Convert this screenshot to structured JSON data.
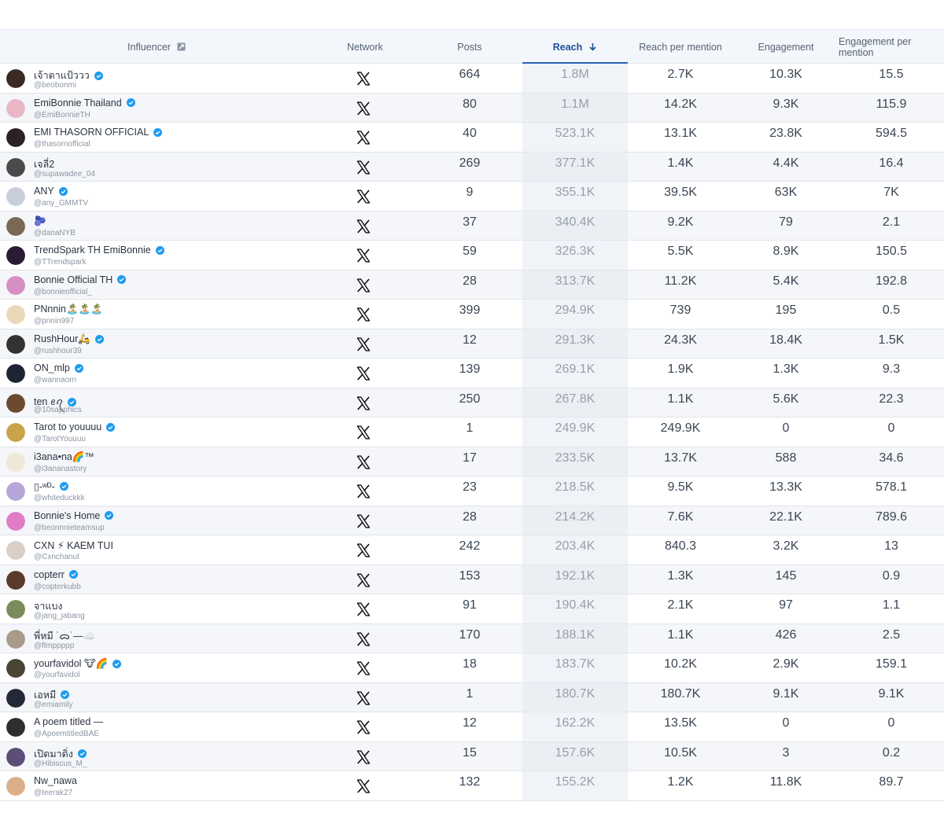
{
  "columns": {
    "influencer": "Influencer",
    "network": "Network",
    "posts": "Posts",
    "reach": "Reach",
    "reach_per_mention": "Reach per mention",
    "engagement": "Engagement",
    "engagement_per_mention": "Engagement per mention"
  },
  "sort": {
    "column": "reach",
    "direction": "descending"
  },
  "colors": {
    "accent": "#2d62b5",
    "verified": "#1d9bf0",
    "header_bg": "#f3f6fa",
    "stripe": "#f4f6f9"
  },
  "rows": [
    {
      "name": "เจ้าตาแป้ววว",
      "handle": "@beobonmi",
      "verified": true,
      "network": "x-icon",
      "posts": "664",
      "reach": "1.8M",
      "reach_per_mention": "2.7K",
      "engagement": "10.3K",
      "engagement_per_mention": "15.5",
      "avatar_color": "#3a2a22"
    },
    {
      "name": "EmiBonnie Thailand",
      "handle": "@EmiBonnieTH",
      "verified": true,
      "network": "x-icon",
      "posts": "80",
      "reach": "1.1M",
      "reach_per_mention": "14.2K",
      "engagement": "9.3K",
      "engagement_per_mention": "115.9",
      "avatar_color": "#e9b7c5"
    },
    {
      "name": "EMI THASORN OFFICIAL",
      "handle": "@thasornofficial",
      "verified": true,
      "network": "x-icon",
      "posts": "40",
      "reach": "523.1K",
      "reach_per_mention": "13.1K",
      "engagement": "23.8K",
      "engagement_per_mention": "594.5",
      "avatar_color": "#2b2224"
    },
    {
      "name": "เจลี่2",
      "handle": "@supawadee_04",
      "verified": false,
      "network": "x-icon",
      "posts": "269",
      "reach": "377.1K",
      "reach_per_mention": "1.4K",
      "engagement": "4.4K",
      "engagement_per_mention": "16.4",
      "avatar_color": "#4a4a4a"
    },
    {
      "name": "ANY",
      "handle": "@any_GMMTV",
      "verified": true,
      "network": "x-icon",
      "posts": "9",
      "reach": "355.1K",
      "reach_per_mention": "39.5K",
      "engagement": "63K",
      "engagement_per_mention": "7K",
      "avatar_color": "#c9cfd8"
    },
    {
      "name": "🫐",
      "handle": "@danaNYB",
      "verified": false,
      "network": "x-icon",
      "posts": "37",
      "reach": "340.4K",
      "reach_per_mention": "9.2K",
      "engagement": "79",
      "engagement_per_mention": "2.1",
      "avatar_color": "#7a6a55"
    },
    {
      "name": "TrendSpark TH EmiBonnie",
      "handle": "@TTrendspark",
      "verified": true,
      "network": "x-icon",
      "posts": "59",
      "reach": "326.3K",
      "reach_per_mention": "5.5K",
      "engagement": "8.9K",
      "engagement_per_mention": "150.5",
      "avatar_color": "#2a1a34"
    },
    {
      "name": "Bonnie Official TH",
      "handle": "@bonnieofficial_",
      "verified": true,
      "network": "x-icon",
      "posts": "28",
      "reach": "313.7K",
      "reach_per_mention": "11.2K",
      "engagement": "5.4K",
      "engagement_per_mention": "192.8",
      "avatar_color": "#d58fc0"
    },
    {
      "name": "PNnnin🏝️🏝️🏝️",
      "handle": "@pnnin997",
      "verified": false,
      "network": "x-icon",
      "posts": "399",
      "reach": "294.9K",
      "reach_per_mention": "739",
      "engagement": "195",
      "engagement_per_mention": "0.5",
      "avatar_color": "#e8d9b8"
    },
    {
      "name": "RushHour🛵",
      "handle": "@rushhour39",
      "verified": true,
      "network": "x-icon",
      "posts": "12",
      "reach": "291.3K",
      "reach_per_mention": "24.3K",
      "engagement": "18.4K",
      "engagement_per_mention": "1.5K",
      "avatar_color": "#333333"
    },
    {
      "name": "ON_mlp",
      "handle": "@wannaorn",
      "verified": true,
      "network": "x-icon",
      "posts": "139",
      "reach": "269.1K",
      "reach_per_mention": "1.9K",
      "engagement": "1.3K",
      "engagement_per_mention": "9.3",
      "avatar_color": "#1e2433"
    },
    {
      "name": "ten ꫀꪖ",
      "handle": "@10sapphics",
      "verified": true,
      "network": "x-icon",
      "posts": "250",
      "reach": "267.8K",
      "reach_per_mention": "1.1K",
      "engagement": "5.6K",
      "engagement_per_mention": "22.3",
      "avatar_color": "#6b4a30"
    },
    {
      "name": "Tarot to youuuu",
      "handle": "@TarotYouuuu",
      "verified": true,
      "network": "x-icon",
      "posts": "1",
      "reach": "249.9K",
      "reach_per_mention": "249.9K",
      "engagement": "0",
      "engagement_per_mention": "0",
      "avatar_color": "#c9a24a"
    },
    {
      "name": "i3ana•na🌈™",
      "handle": "@i3ananastory",
      "verified": false,
      "network": "x-icon",
      "posts": "17",
      "reach": "233.5K",
      "reach_per_mention": "13.7K",
      "engagement": "588",
      "engagement_per_mention": "34.6",
      "avatar_color": "#f1e7d6"
    },
    {
      "name": "▯-ʷᴰ-",
      "handle": "@whiteduckkk",
      "verified": true,
      "network": "x-icon",
      "posts": "23",
      "reach": "218.5K",
      "reach_per_mention": "9.5K",
      "engagement": "13.3K",
      "engagement_per_mention": "578.1",
      "avatar_color": "#b7a6d9"
    },
    {
      "name": "Bonnie's Home",
      "handle": "@beonnnieteamsup",
      "verified": true,
      "network": "x-icon",
      "posts": "28",
      "reach": "214.2K",
      "reach_per_mention": "7.6K",
      "engagement": "22.1K",
      "engagement_per_mention": "789.6",
      "avatar_color": "#e07cc5"
    },
    {
      "name": "CXN ⚡︎ KAEM TUI",
      "handle": "@Cxnchanut",
      "verified": false,
      "network": "x-icon",
      "posts": "242",
      "reach": "203.4K",
      "reach_per_mention": "840.3",
      "engagement": "3.2K",
      "engagement_per_mention": "13",
      "avatar_color": "#d9cfc4"
    },
    {
      "name": "copterr",
      "handle": "@copterkubb",
      "verified": true,
      "network": "x-icon",
      "posts": "153",
      "reach": "192.1K",
      "reach_per_mention": "1.3K",
      "engagement": "145",
      "engagement_per_mention": "0.9",
      "avatar_color": "#5a3a2a"
    },
    {
      "name": "จาแบง",
      "handle": "@jang_jabang",
      "verified": false,
      "network": "x-icon",
      "posts": "91",
      "reach": "190.4K",
      "reach_per_mention": "2.1K",
      "engagement": "97",
      "engagement_per_mention": "1.1",
      "avatar_color": "#7d8a5a"
    },
    {
      "name": "พี่หมี ˙ᯅ˙—☁️",
      "handle": "@flmppppp",
      "verified": false,
      "network": "x-icon",
      "posts": "170",
      "reach": "188.1K",
      "reach_per_mention": "1.1K",
      "engagement": "426",
      "engagement_per_mention": "2.5",
      "avatar_color": "#a89b8a"
    },
    {
      "name": "yourfavidol 🐮🌈",
      "handle": "@yourfavidol",
      "verified": true,
      "network": "x-icon",
      "posts": "18",
      "reach": "183.7K",
      "reach_per_mention": "10.2K",
      "engagement": "2.9K",
      "engagement_per_mention": "159.1",
      "avatar_color": "#4a4436"
    },
    {
      "name": "เอหมี",
      "handle": "@emiamily",
      "verified": true,
      "network": "x-icon",
      "posts": "1",
      "reach": "180.7K",
      "reach_per_mention": "180.7K",
      "engagement": "9.1K",
      "engagement_per_mention": "9.1K",
      "avatar_color": "#24293a"
    },
    {
      "name": "A poem titled —",
      "handle": "@ApoemtitledBAE",
      "verified": false,
      "network": "x-icon",
      "posts": "12",
      "reach": "162.2K",
      "reach_per_mention": "13.5K",
      "engagement": "0",
      "engagement_per_mention": "0",
      "avatar_color": "#2e2e2e"
    },
    {
      "name": "เปิดมาดิ่ง",
      "handle": "@Hibiscus_M_",
      "verified": true,
      "network": "x-icon",
      "posts": "15",
      "reach": "157.6K",
      "reach_per_mention": "10.5K",
      "engagement": "3",
      "engagement_per_mention": "0.2",
      "avatar_color": "#5b4f7a"
    },
    {
      "name": "Nw_nawa",
      "handle": "@teerak27",
      "verified": false,
      "network": "x-icon",
      "posts": "132",
      "reach": "155.2K",
      "reach_per_mention": "1.2K",
      "engagement": "11.8K",
      "engagement_per_mention": "89.7",
      "avatar_color": "#d9b08a"
    }
  ]
}
